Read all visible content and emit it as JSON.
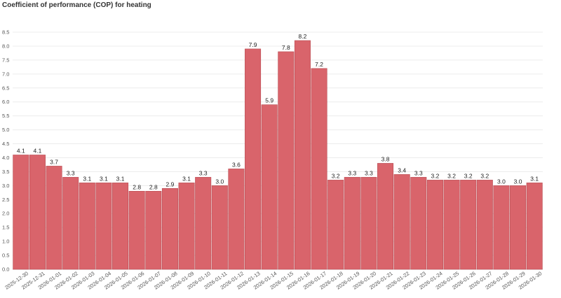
{
  "chart_data": {
    "type": "bar",
    "title": "Coefficient of performance (COP) for heating",
    "xlabel": "",
    "ylabel": "",
    "ylim": [
      0,
      8.5
    ],
    "yticks": [
      0.0,
      0.5,
      1.0,
      1.5,
      2.0,
      2.5,
      3.0,
      3.5,
      4.0,
      4.5,
      5.0,
      5.5,
      6.0,
      6.5,
      7.0,
      7.5,
      8.0,
      8.5
    ],
    "ytick_labels": [
      "0.0",
      "0.5",
      "1.0",
      "1.5",
      "2.0",
      "2.5",
      "3.0",
      "3.5",
      "4.0",
      "4.5",
      "5.0",
      "5.5",
      "6.0",
      "6.5",
      "7.0",
      "7.5",
      "8.0",
      "8.5"
    ],
    "grid": true,
    "bar_color": "#d9646b",
    "categories": [
      "2025-12-30",
      "2025-12-31",
      "2026-01-01",
      "2026-01-02",
      "2026-01-03",
      "2026-01-04",
      "2026-01-05",
      "2026-01-06",
      "2026-01-07",
      "2026-01-08",
      "2026-01-09",
      "2026-01-10",
      "2026-01-11",
      "2026-01-12",
      "2026-01-13",
      "2026-01-14",
      "2026-01-15",
      "2026-01-16",
      "2026-01-17",
      "2026-01-18",
      "2026-01-19",
      "2026-01-20",
      "2026-01-21",
      "2026-01-22",
      "2026-01-23",
      "2026-01-24",
      "2026-01-25",
      "2026-01-26",
      "2026-01-27",
      "2026-01-28",
      "2026-01-29",
      "2026-01-30"
    ],
    "values": [
      4.1,
      4.1,
      3.7,
      3.3,
      3.1,
      3.1,
      3.1,
      2.8,
      2.8,
      2.9,
      3.1,
      3.3,
      3.0,
      3.6,
      7.9,
      5.9,
      7.8,
      8.2,
      7.2,
      3.2,
      3.3,
      3.3,
      3.8,
      3.4,
      3.3,
      3.2,
      3.2,
      3.2,
      3.2,
      3.0,
      3.0,
      3.1
    ],
    "value_labels": [
      "4.1",
      "4.1",
      "3.7",
      "3.3",
      "3.1",
      "3.1",
      "3.1",
      "2.8",
      "2.8",
      "2.9",
      "3.1",
      "3.3",
      "3.0",
      "3.6",
      "7.9",
      "5.9",
      "7.8",
      "8.2",
      "7.2",
      "3.2",
      "3.3",
      "3.3",
      "3.8",
      "3.4",
      "3.3",
      "3.2",
      "3.2",
      "3.2",
      "3.2",
      "3.0",
      "3.0",
      "3.1"
    ]
  }
}
